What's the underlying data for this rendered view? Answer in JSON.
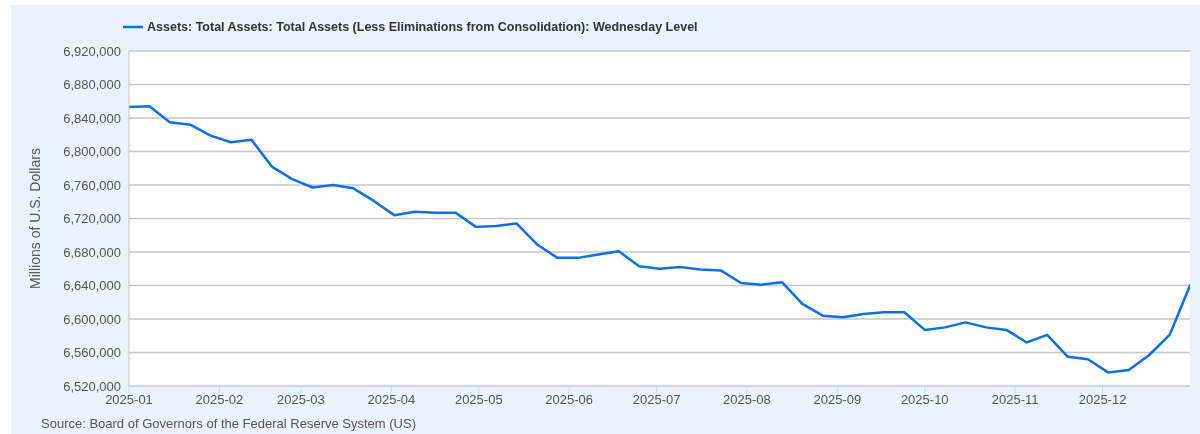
{
  "chart_data": {
    "type": "line",
    "ylabel": "Millions of U.S. Dollars",
    "annotations": [
      "Source: Board of Governors of the Federal Reserve System (US)"
    ],
    "x": [
      "2025-01-01",
      "2025-01-08",
      "2025-01-15",
      "2025-01-22",
      "2025-01-29",
      "2025-02-05",
      "2025-02-12",
      "2025-02-19",
      "2025-02-26",
      "2025-03-05",
      "2025-03-12",
      "2025-03-19",
      "2025-03-26",
      "2025-04-02",
      "2025-04-09",
      "2025-04-16",
      "2025-04-23",
      "2025-04-30",
      "2025-05-07",
      "2025-05-14",
      "2025-05-21",
      "2025-05-28",
      "2025-06-04",
      "2025-06-11",
      "2025-06-18",
      "2025-06-25",
      "2025-07-02",
      "2025-07-09",
      "2025-07-16",
      "2025-07-23",
      "2025-07-30",
      "2025-08-06",
      "2025-08-13",
      "2025-08-20",
      "2025-08-27",
      "2025-09-03",
      "2025-09-10",
      "2025-09-17",
      "2025-09-24",
      "2025-10-01",
      "2025-10-08",
      "2025-10-15",
      "2025-10-22",
      "2025-10-29",
      "2025-11-05",
      "2025-11-12",
      "2025-11-19",
      "2025-11-26",
      "2025-12-03",
      "2025-12-10",
      "2025-12-17",
      "2025-12-24",
      "2025-12-31"
    ],
    "series": [
      {
        "name": "Assets: Total Assets: Total Assets (Less Eliminations from Consolidation): Wednesday Level",
        "color": "#0d6fe3",
        "values": [
          6853000,
          6854000,
          6835000,
          6832000,
          6819000,
          6811000,
          6814000,
          6782000,
          6767000,
          6757000,
          6760000,
          6756000,
          6741000,
          6724000,
          6728000,
          6727000,
          6727000,
          6710000,
          6711000,
          6714000,
          6689000,
          6673000,
          6673000,
          6677000,
          6681000,
          6663000,
          6660000,
          6662000,
          6659000,
          6658000,
          6643000,
          6641000,
          6644000,
          6618000,
          6604000,
          6602000,
          6606000,
          6608000,
          6608000,
          6587000,
          6590000,
          6596000,
          6590000,
          6587000,
          6572000,
          6581000,
          6555000,
          6552000,
          6536000,
          6539000,
          6557000,
          6581000,
          6640000
        ]
      }
    ],
    "xlim": [
      "2025-01-01",
      "2025-12-31"
    ],
    "xticks": [
      "2025-01",
      "2025-02",
      "2025-03",
      "2025-04",
      "2025-05",
      "2025-06",
      "2025-07",
      "2025-08",
      "2025-09",
      "2025-10",
      "2025-11",
      "2025-12"
    ],
    "ylim": [
      6520000,
      6920000
    ],
    "yticks": [
      {
        "value": 6520000,
        "label": "6,520,000"
      },
      {
        "value": 6560000,
        "label": "6,560,000"
      },
      {
        "value": 6600000,
        "label": "6,600,000"
      },
      {
        "value": 6640000,
        "label": "6,640,000"
      },
      {
        "value": 6680000,
        "label": "6,680,000"
      },
      {
        "value": 6720000,
        "label": "6,720,000"
      },
      {
        "value": 6760000,
        "label": "6,760,000"
      },
      {
        "value": 6800000,
        "label": "6,800,000"
      },
      {
        "value": 6840000,
        "label": "6,840,000"
      },
      {
        "value": 6880000,
        "label": "6,880,000"
      },
      {
        "value": 6920000,
        "label": "6,920,000"
      }
    ],
    "grid": "y",
    "legend": "top left"
  }
}
